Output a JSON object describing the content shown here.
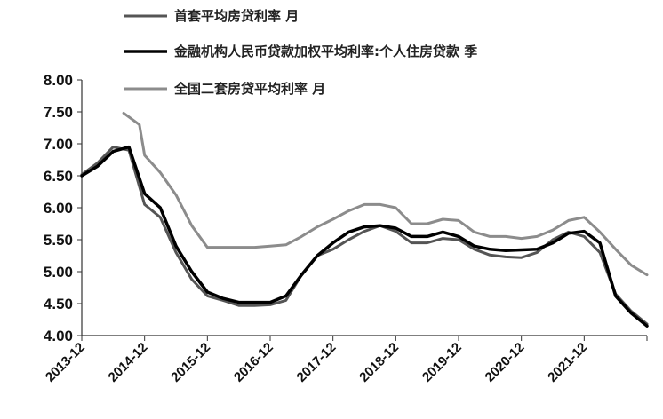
{
  "chart_data": {
    "type": "line",
    "title": "",
    "xlabel": "",
    "ylabel": "",
    "ylim": [
      4.0,
      8.0
    ],
    "yticks": [
      "8.00",
      "7.50",
      "7.00",
      "6.50",
      "6.00",
      "5.50",
      "5.00",
      "4.50",
      "4.00"
    ],
    "xticks": [
      "2013-12",
      "2014-12",
      "2015-12",
      "2016-12",
      "2017-12",
      "2018-12",
      "2019-12",
      "2020-12",
      "2021-12"
    ],
    "legend_position": "top-left",
    "grid": false,
    "series": [
      {
        "name": "首套平均房贷利率 月",
        "color": "#555555",
        "width": 3,
        "points": [
          [
            "2013-12",
            6.52
          ],
          [
            "2014-03",
            6.7
          ],
          [
            "2014-06",
            6.95
          ],
          [
            "2014-09",
            6.9
          ],
          [
            "2014-12",
            6.05
          ],
          [
            "2015-03",
            5.85
          ],
          [
            "2015-06",
            5.3
          ],
          [
            "2015-09",
            4.88
          ],
          [
            "2015-12",
            4.62
          ],
          [
            "2016-03",
            4.55
          ],
          [
            "2016-06",
            4.47
          ],
          [
            "2016-09",
            4.47
          ],
          [
            "2016-12",
            4.48
          ],
          [
            "2017-03",
            4.55
          ],
          [
            "2017-06",
            4.95
          ],
          [
            "2017-09",
            5.25
          ],
          [
            "2017-12",
            5.35
          ],
          [
            "2018-03",
            5.5
          ],
          [
            "2018-06",
            5.63
          ],
          [
            "2018-09",
            5.72
          ],
          [
            "2018-12",
            5.63
          ],
          [
            "2019-03",
            5.45
          ],
          [
            "2019-06",
            5.45
          ],
          [
            "2019-09",
            5.52
          ],
          [
            "2019-12",
            5.5
          ],
          [
            "2020-03",
            5.35
          ],
          [
            "2020-06",
            5.26
          ],
          [
            "2020-09",
            5.23
          ],
          [
            "2020-12",
            5.22
          ],
          [
            "2021-03",
            5.3
          ],
          [
            "2021-06",
            5.5
          ],
          [
            "2021-09",
            5.62
          ],
          [
            "2021-12",
            5.55
          ],
          [
            "2022-03",
            5.3
          ],
          [
            "2022-06",
            4.65
          ],
          [
            "2022-09",
            4.38
          ],
          [
            "2022-12",
            4.18
          ]
        ]
      },
      {
        "name": "金融机构人民币贷款加权平均利率:个人住房贷款 季",
        "color": "#000000",
        "width": 3.5,
        "points": [
          [
            "2013-12",
            6.5
          ],
          [
            "2014-03",
            6.65
          ],
          [
            "2014-06",
            6.88
          ],
          [
            "2014-09",
            6.95
          ],
          [
            "2014-12",
            6.22
          ],
          [
            "2015-03",
            6.0
          ],
          [
            "2015-06",
            5.4
          ],
          [
            "2015-09",
            5.0
          ],
          [
            "2015-12",
            4.68
          ],
          [
            "2016-03",
            4.58
          ],
          [
            "2016-06",
            4.52
          ],
          [
            "2016-09",
            4.52
          ],
          [
            "2016-12",
            4.52
          ],
          [
            "2017-03",
            4.62
          ],
          [
            "2017-06",
            4.95
          ],
          [
            "2017-09",
            5.25
          ],
          [
            "2017-12",
            5.45
          ],
          [
            "2018-03",
            5.62
          ],
          [
            "2018-06",
            5.7
          ],
          [
            "2018-09",
            5.72
          ],
          [
            "2018-12",
            5.68
          ],
          [
            "2019-03",
            5.55
          ],
          [
            "2019-06",
            5.55
          ],
          [
            "2019-09",
            5.62
          ],
          [
            "2019-12",
            5.55
          ],
          [
            "2020-03",
            5.4
          ],
          [
            "2020-06",
            5.35
          ],
          [
            "2020-09",
            5.33
          ],
          [
            "2020-12",
            5.34
          ],
          [
            "2021-03",
            5.35
          ],
          [
            "2021-06",
            5.45
          ],
          [
            "2021-09",
            5.6
          ],
          [
            "2021-12",
            5.63
          ],
          [
            "2022-03",
            5.45
          ],
          [
            "2022-06",
            4.62
          ],
          [
            "2022-09",
            4.35
          ],
          [
            "2022-12",
            4.15
          ]
        ]
      },
      {
        "name": "全国二套房贷平均利率 月",
        "color": "#8c8c8c",
        "width": 3,
        "points": [
          [
            "2014-08",
            7.48
          ],
          [
            "2014-11",
            7.3
          ],
          [
            "2014-12",
            6.82
          ],
          [
            "2015-03",
            6.55
          ],
          [
            "2015-06",
            6.2
          ],
          [
            "2015-09",
            5.72
          ],
          [
            "2015-12",
            5.38
          ],
          [
            "2016-03",
            5.38
          ],
          [
            "2016-06",
            5.38
          ],
          [
            "2016-09",
            5.38
          ],
          [
            "2016-12",
            5.4
          ],
          [
            "2017-03",
            5.42
          ],
          [
            "2017-06",
            5.55
          ],
          [
            "2017-09",
            5.7
          ],
          [
            "2017-12",
            5.82
          ],
          [
            "2018-03",
            5.95
          ],
          [
            "2018-06",
            6.05
          ],
          [
            "2018-09",
            6.05
          ],
          [
            "2018-12",
            6.0
          ],
          [
            "2019-03",
            5.75
          ],
          [
            "2019-06",
            5.75
          ],
          [
            "2019-09",
            5.82
          ],
          [
            "2019-12",
            5.8
          ],
          [
            "2020-03",
            5.62
          ],
          [
            "2020-06",
            5.55
          ],
          [
            "2020-09",
            5.55
          ],
          [
            "2020-12",
            5.52
          ],
          [
            "2021-03",
            5.55
          ],
          [
            "2021-06",
            5.65
          ],
          [
            "2021-09",
            5.8
          ],
          [
            "2021-12",
            5.85
          ],
          [
            "2022-03",
            5.62
          ],
          [
            "2022-06",
            5.35
          ],
          [
            "2022-09",
            5.1
          ],
          [
            "2022-12",
            4.95
          ]
        ]
      }
    ]
  }
}
